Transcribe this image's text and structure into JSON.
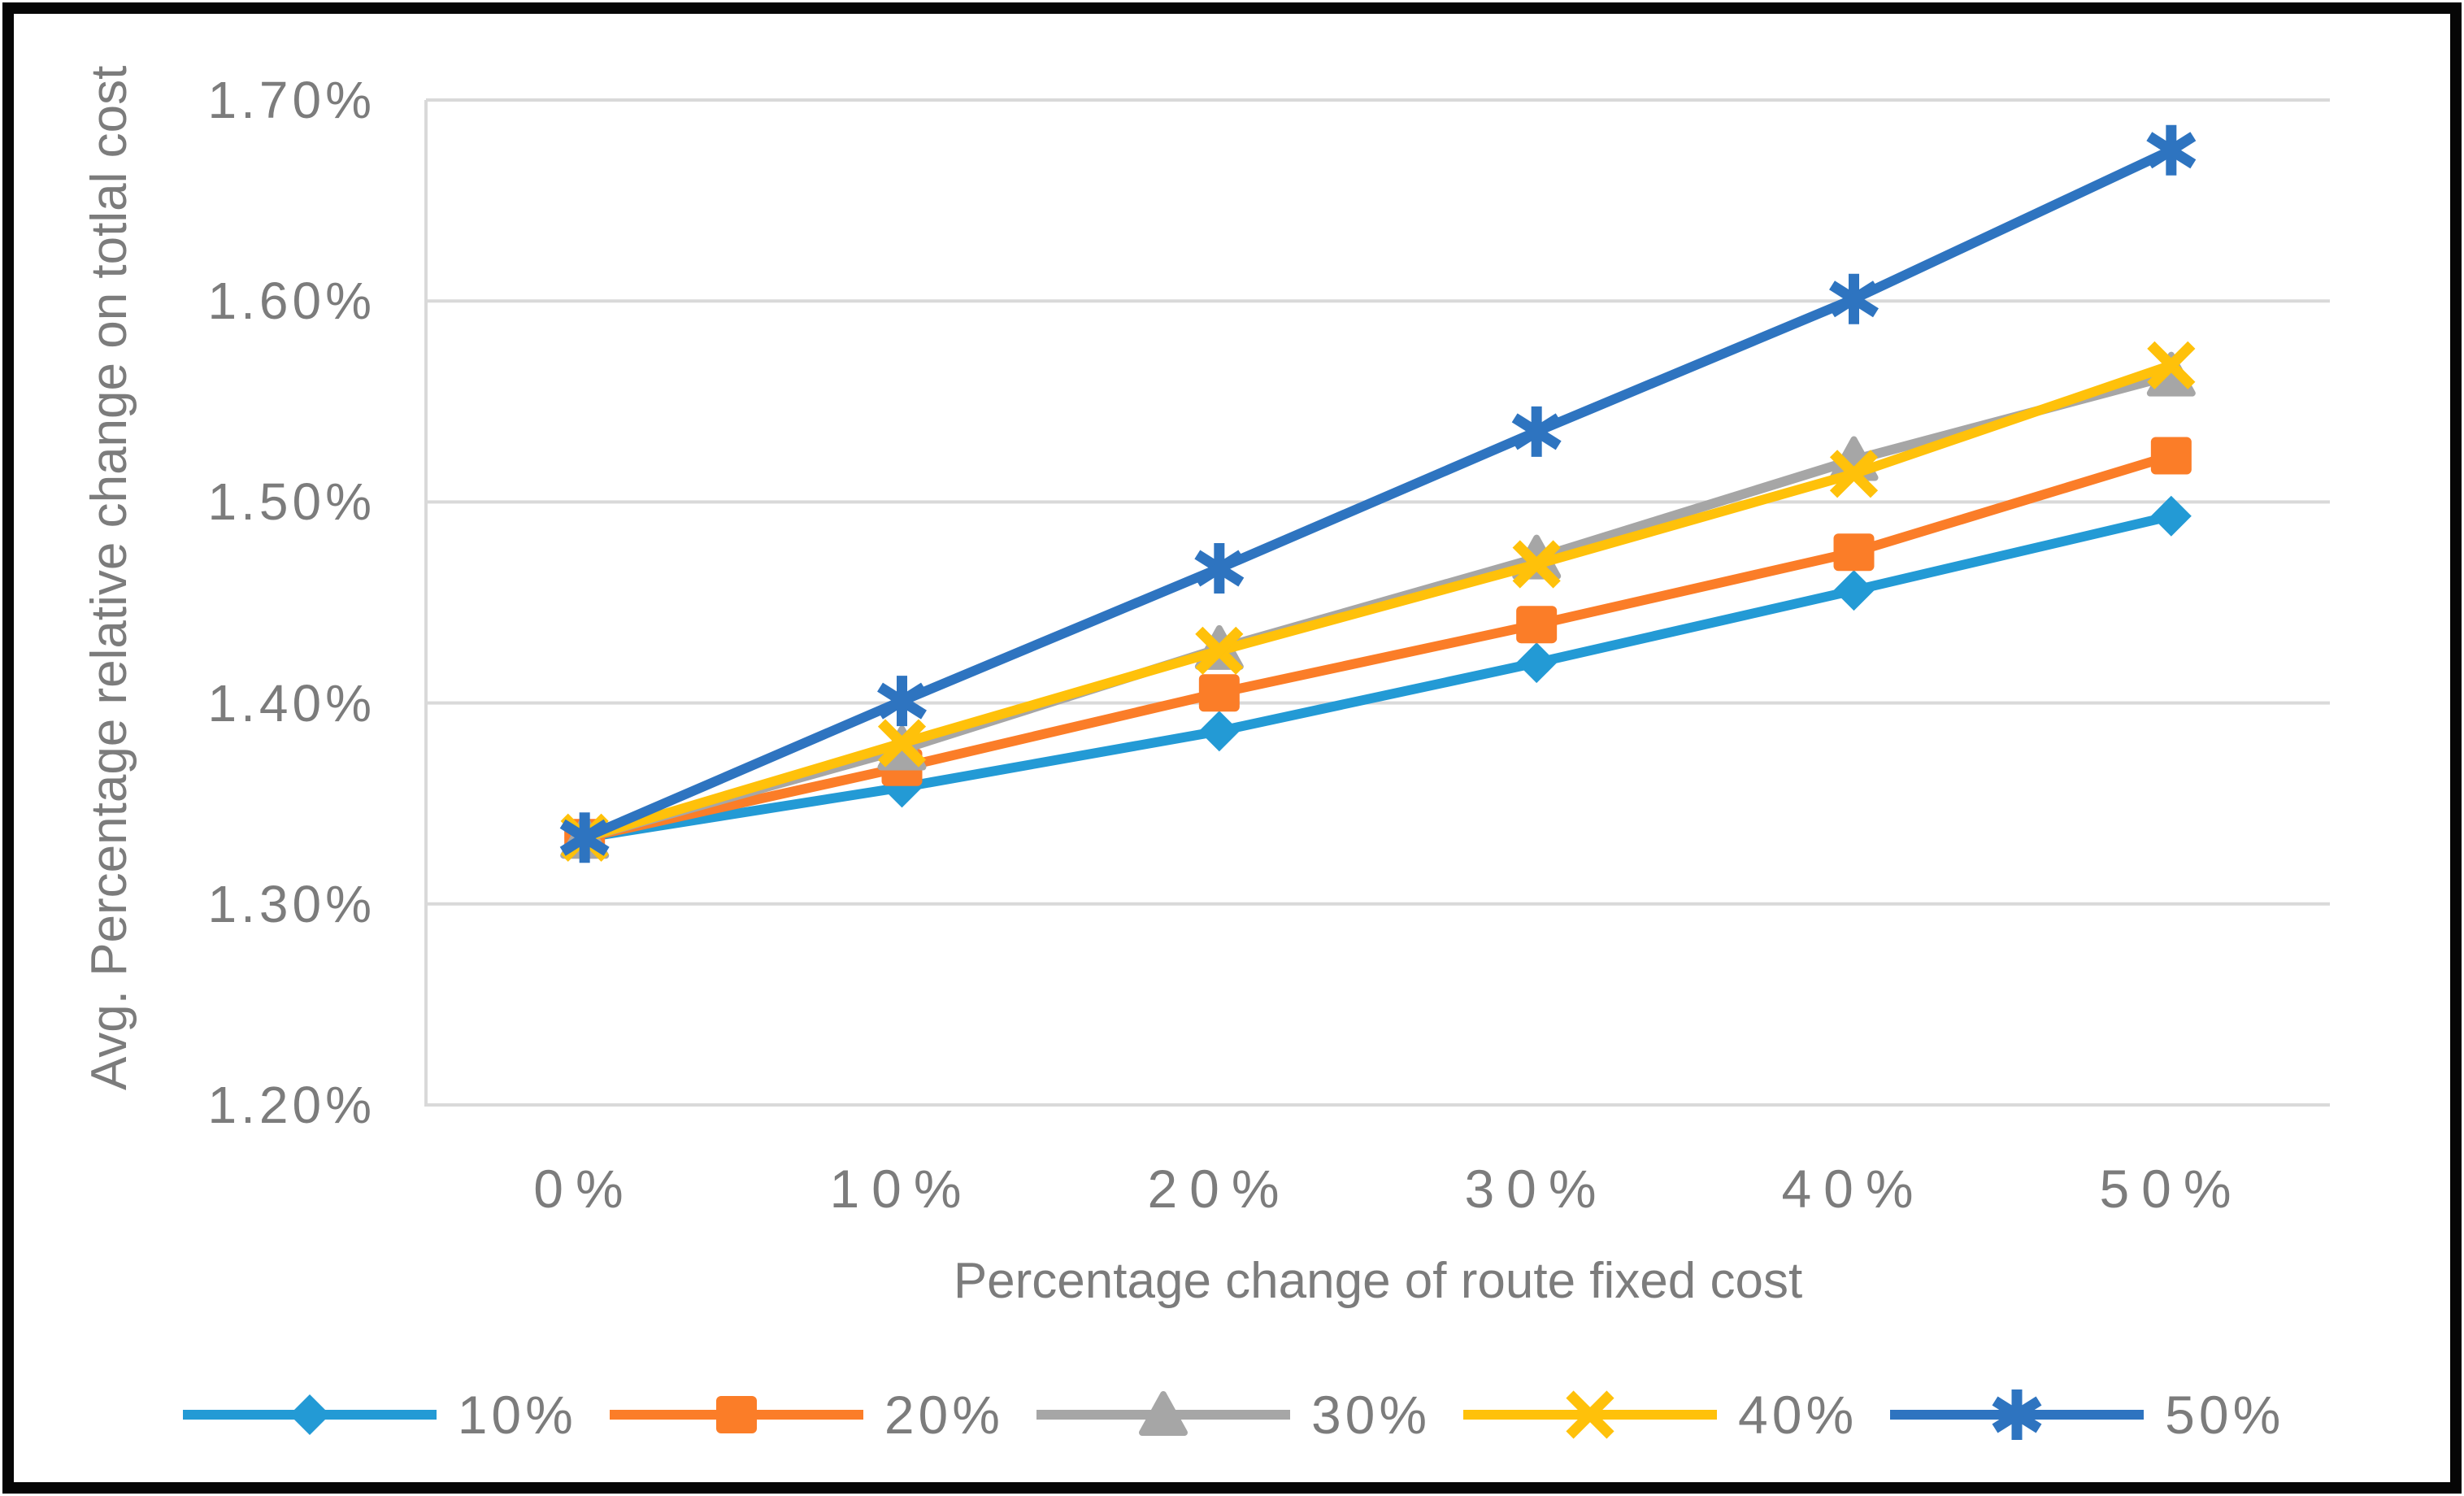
{
  "figure": {
    "background": "#ffffff",
    "border_color": "#060606",
    "axis_text_color": "#7c7c7c",
    "gridline_color": "#d9d9d9"
  },
  "chart_data": {
    "type": "line",
    "title": "",
    "xlabel": "Percentage change of route fixed cost",
    "ylabel": "Avg. Percentage relative change on totlal cost",
    "categories": [
      "0%",
      "10%",
      "20%",
      "30%",
      "40%",
      "50%"
    ],
    "y_ticks": [
      "1.70%",
      "1.60%",
      "1.50%",
      "1.40%",
      "1.30%",
      "1.20%"
    ],
    "y_tick_values": [
      1.7,
      1.6,
      1.5,
      1.4,
      1.3,
      1.2
    ],
    "ylim": [
      1.2,
      1.7
    ],
    "grid": true,
    "legend_position": "bottom",
    "value_unit": "percent",
    "series": [
      {
        "name": "10%",
        "color": "#239ad5",
        "marker": "diamond",
        "values": [
          1.333,
          1.358,
          1.386,
          1.42,
          1.456,
          1.493
        ]
      },
      {
        "name": "20%",
        "color": "#fb7d28",
        "marker": "square",
        "values": [
          1.333,
          1.368,
          1.405,
          1.439,
          1.475,
          1.523
        ]
      },
      {
        "name": "30%",
        "color": "#a6a6a6",
        "marker": "triangle",
        "values": [
          1.333,
          1.377,
          1.427,
          1.472,
          1.521,
          1.563
        ]
      },
      {
        "name": "40%",
        "color": "#ffc10a",
        "marker": "x",
        "values": [
          1.333,
          1.38,
          1.426,
          1.469,
          1.514,
          1.568
        ]
      },
      {
        "name": "50%",
        "color": "#2e74c0",
        "marker": "asterisk",
        "values": [
          1.333,
          1.401,
          1.467,
          1.535,
          1.601,
          1.675
        ]
      }
    ]
  }
}
